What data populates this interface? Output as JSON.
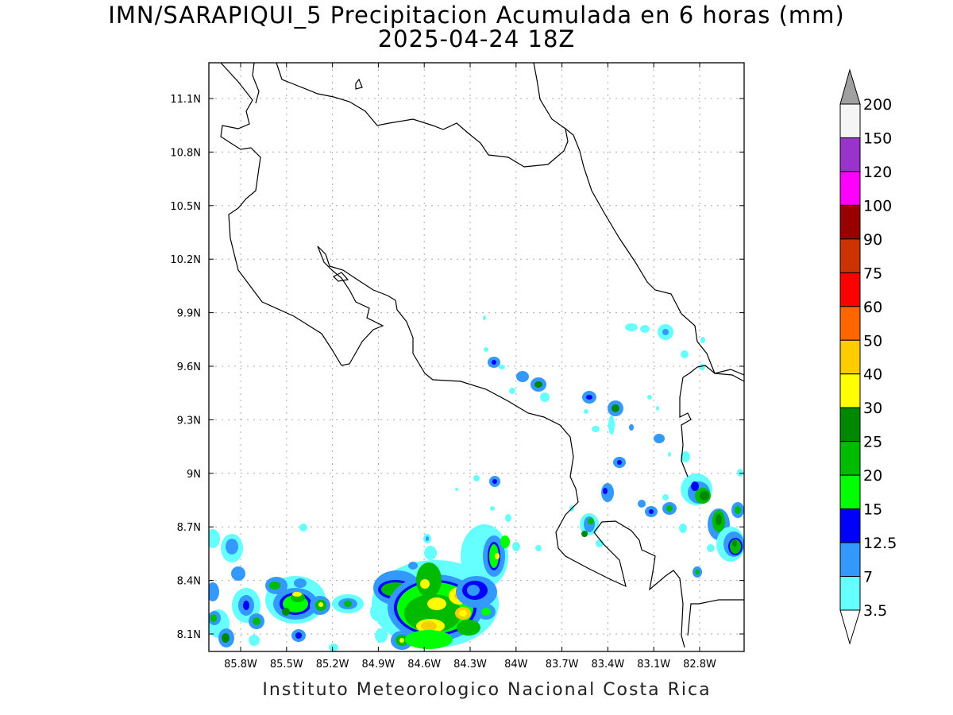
{
  "title": {
    "line1": "IMN/SARAPIQUI_5 Precipitacion Acumulada en 6 horas (mm)",
    "line2": "2025-04-24 18Z"
  },
  "footer": "Instituto Meteorologico Nacional Costa Rica",
  "map": {
    "lat_ticks": [
      "11.1N",
      "10.8N",
      "10.5N",
      "10.2N",
      "9.9N",
      "9.6N",
      "9.3N",
      "9N",
      "8.7N",
      "8.4N",
      "8.1N"
    ],
    "lon_ticks": [
      "85.8W",
      "85.5W",
      "85.2W",
      "84.9W",
      "84.6W",
      "84.3W",
      "84W",
      "83.7W",
      "83.4W",
      "83.1W",
      "82.8W"
    ],
    "grid": true
  },
  "colorbar": {
    "levels": [
      "200",
      "150",
      "120",
      "100",
      "90",
      "75",
      "60",
      "50",
      "40",
      "30",
      "25",
      "20",
      "15",
      "12.5",
      "7",
      "3.5"
    ],
    "colors": [
      "#f5f5f5",
      "#9933cc",
      "#ff00ff",
      "#990000",
      "#cc3300",
      "#ff0000",
      "#ff6600",
      "#ffcc00",
      "#ffff00",
      "#008800",
      "#00bb00",
      "#00ff00",
      "#0000ff",
      "#3399ff",
      "#66ffff"
    ],
    "over_color": "#a0a0a0",
    "under_color": "#ffffff"
  }
}
